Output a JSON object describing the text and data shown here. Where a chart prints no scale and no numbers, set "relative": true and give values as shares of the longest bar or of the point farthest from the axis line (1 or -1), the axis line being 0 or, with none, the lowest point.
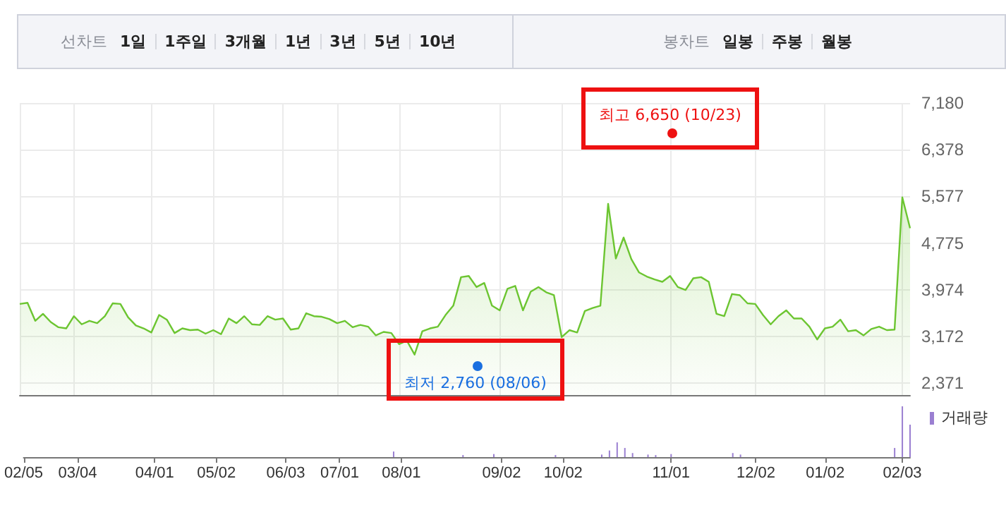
{
  "chart_data": [
    {
      "type": "other",
      "title": "선차트",
      "annotations": [
        "1일",
        "1주일",
        "3개월",
        "1년",
        "3년",
        "5년",
        "10년"
      ]
    },
    {
      "type": "other",
      "title": "봉차트",
      "annotations": [
        "일봉",
        "주봉",
        "월봉"
      ]
    },
    {
      "type": "area",
      "color": "#6cc531",
      "grid": true,
      "tick_labels": "y",
      "categories": [
        null,
        null,
        null,
        null,
        null,
        null,
        null,
        null,
        null,
        null,
        null,
        null,
        null,
        null,
        null,
        null,
        null,
        null,
        null,
        null,
        null,
        null,
        null,
        null,
        null,
        null,
        null,
        null,
        null,
        null,
        null,
        null,
        null,
        null,
        null,
        null,
        null,
        null,
        null,
        null,
        null,
        null,
        null,
        null,
        null,
        null,
        null,
        null,
        null,
        null,
        null,
        null,
        null,
        null,
        null,
        null,
        null,
        null,
        null,
        null,
        null,
        null,
        null,
        null,
        null,
        null,
        null,
        null,
        null,
        null,
        null,
        null,
        null,
        null,
        null,
        null,
        null,
        null,
        null,
        null,
        null,
        null,
        null,
        null,
        null,
        null,
        null,
        null,
        null,
        null,
        null,
        null,
        null,
        null,
        null,
        null,
        null,
        null,
        null,
        null,
        null,
        null,
        null,
        null,
        null,
        null,
        null,
        null,
        null,
        null,
        null,
        null,
        null,
        null,
        null,
        null
      ],
      "values": [
        3730,
        3750,
        3440,
        3560,
        3420,
        3330,
        3310,
        3520,
        3380,
        3440,
        3400,
        3520,
        3740,
        3730,
        3500,
        3360,
        3310,
        3240,
        3540,
        3460,
        3230,
        3310,
        3280,
        3290,
        3220,
        3280,
        3210,
        3480,
        3400,
        3520,
        3380,
        3370,
        3520,
        3460,
        3480,
        3290,
        3310,
        3570,
        3520,
        3510,
        3470,
        3400,
        3440,
        3330,
        3370,
        3340,
        3190,
        3250,
        3230,
        3040,
        3100,
        2860,
        3260,
        3310,
        3340,
        3540,
        3700,
        4190,
        4210,
        4020,
        4090,
        3700,
        3620,
        3990,
        4040,
        3620,
        3940,
        4020,
        3930,
        3880,
        3160,
        3280,
        3240,
        3610,
        3660,
        3700,
        5450,
        4510,
        4870,
        4500,
        4270,
        4200,
        4150,
        4110,
        4210,
        4020,
        3970,
        4170,
        4190,
        4110,
        3560,
        3520,
        3900,
        3880,
        3740,
        3730,
        3540,
        3380,
        3520,
        3620,
        3480,
        3480,
        3340,
        3120,
        3310,
        3340,
        3460,
        3260,
        3280,
        3190,
        3300,
        3340,
        3280,
        3290,
        5560,
        5030
      ],
      "ylim": [
        2166,
        7180
      ],
      "yticks": [
        {
          "value": 2371,
          "label": "2,371"
        },
        {
          "value": 3172,
          "label": "3,172"
        },
        {
          "value": 3974,
          "label": "3,974"
        },
        {
          "value": 4775,
          "label": "4,775"
        },
        {
          "value": 5577,
          "label": "5,577"
        },
        {
          "value": 6378,
          "label": "6,378"
        },
        {
          "value": 7180,
          "label": "7,180"
        }
      ],
      "annotations": [
        "최고 6,650 (10/23)",
        "최저 2,760 (08/06)"
      ]
    },
    {
      "type": "bar",
      "relative": true,
      "legend": "top right",
      "tick_labels": "x",
      "categories": [
        "02/05",
        null,
        null,
        null,
        null,
        null,
        null,
        "03/04",
        null,
        null,
        null,
        null,
        null,
        null,
        null,
        null,
        null,
        "04/01",
        null,
        null,
        null,
        null,
        null,
        null,
        null,
        "05/02",
        null,
        null,
        null,
        null,
        null,
        null,
        null,
        null,
        "06/03",
        null,
        null,
        null,
        null,
        null,
        null,
        "07/01",
        null,
        null,
        null,
        null,
        null,
        null,
        null,
        "08/01",
        null,
        null,
        null,
        null,
        null,
        null,
        null,
        null,
        null,
        null,
        null,
        null,
        "09/02",
        null,
        null,
        null,
        null,
        null,
        null,
        null,
        "10/02",
        null,
        null,
        null,
        null,
        null,
        null,
        null,
        null,
        null,
        null,
        null,
        null,
        null,
        "11/01",
        null,
        null,
        null,
        null,
        null,
        null,
        null,
        null,
        null,
        null,
        "12/02",
        null,
        null,
        null,
        null,
        null,
        null,
        null,
        null,
        "01/02",
        null,
        null,
        null,
        null,
        null,
        null,
        null,
        null,
        null,
        "02/03",
        null
      ],
      "series": [
        {
          "name": "거래량",
          "color": "#9a7fd1",
          "values": [
            null,
            null,
            null,
            null,
            null,
            null,
            null,
            null,
            null,
            null,
            null,
            null,
            null,
            null,
            null,
            null,
            null,
            null,
            null,
            null,
            null,
            null,
            null,
            null,
            null,
            null,
            null,
            null,
            null,
            null,
            null,
            null,
            null,
            null,
            null,
            null,
            null,
            null,
            null,
            null,
            null,
            null,
            null,
            null,
            null,
            null,
            null,
            null,
            0.11,
            null,
            null,
            null,
            null,
            null,
            null,
            null,
            null,
            0.04,
            null,
            null,
            null,
            0.06,
            null,
            null,
            null,
            null,
            null,
            null,
            null,
            0.04,
            null,
            null,
            null,
            null,
            null,
            0.05,
            0.13,
            0.29,
            0.18,
            0.08,
            null,
            0.05,
            0.04,
            null,
            0.06,
            null,
            null,
            null,
            null,
            null,
            null,
            null,
            0.08,
            0.05,
            null,
            null,
            null,
            null,
            null,
            null,
            null,
            null,
            null,
            null,
            null,
            null,
            null,
            null,
            null,
            null,
            null,
            null,
            null,
            0.18,
            1,
            0.64
          ]
        }
      ]
    }
  ]
}
